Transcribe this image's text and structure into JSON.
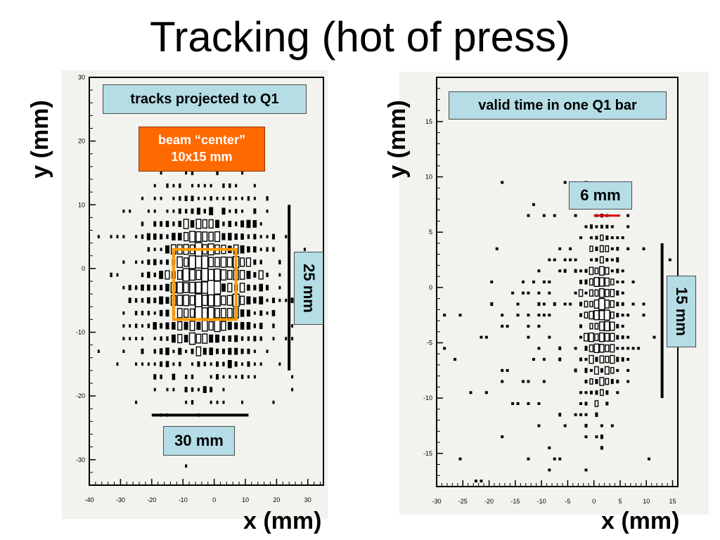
{
  "slide": {
    "title": "Tracking (hot of press)"
  },
  "chart_data": [
    {
      "type": "heatmap",
      "title": "",
      "xlabel": "x (mm)",
      "ylabel": "y (mm)",
      "xlim": [
        -40,
        35
      ],
      "ylim": [
        -34,
        30
      ],
      "xticks": [
        -40,
        -30,
        -20,
        -10,
        0,
        10,
        20,
        30
      ],
      "yticks": [
        -30,
        -20,
        -10,
        0,
        10,
        20,
        30
      ],
      "annotations": {
        "label": "tracks projected to Q1",
        "beam_line1": "beam “center”",
        "beam_line2": "10x15 mm",
        "vertical_scale": "25 mm",
        "horizontal_scale": "30 mm"
      },
      "beam_box": {
        "x": [
          -13,
          7
        ],
        "y": [
          -8,
          3
        ],
        "color": "#ff9900"
      },
      "scale_bars": {
        "vertical": {
          "x": 24,
          "y": [
            -16,
            10
          ]
        },
        "horizontal": {
          "y": -23,
          "x": [
            -20,
            11
          ]
        }
      },
      "spread_mm": {
        "x_sigma": 10,
        "y_sigma": 7
      },
      "center_mm": [
        -3,
        -3
      ]
    },
    {
      "type": "heatmap",
      "title": "",
      "xlabel": "x (mm)",
      "ylabel": "y (mm)",
      "xlim": [
        -30,
        16
      ],
      "ylim": [
        -18,
        19
      ],
      "xticks": [
        -30,
        -25,
        -20,
        -15,
        -10,
        -5,
        0,
        5,
        10,
        15
      ],
      "yticks": [
        -15,
        -10,
        -5,
        0,
        5,
        10,
        15
      ],
      "annotations": {
        "label": "valid time in one Q1 bar",
        "red_scale": "6 mm",
        "vertical_scale": "15 mm"
      },
      "red_bar": {
        "y": 6.5,
        "x": [
          0,
          5
        ],
        "color": "#dd0000"
      },
      "scale_bars": {
        "vertical": {
          "x": 13,
          "y": [
            -10,
            4
          ]
        }
      },
      "spread_mm": {
        "x_sigma": 1.8,
        "y_sigma": 4,
        "background_x_sigma": 9
      },
      "center_mm": [
        1.5,
        -3
      ]
    }
  ]
}
